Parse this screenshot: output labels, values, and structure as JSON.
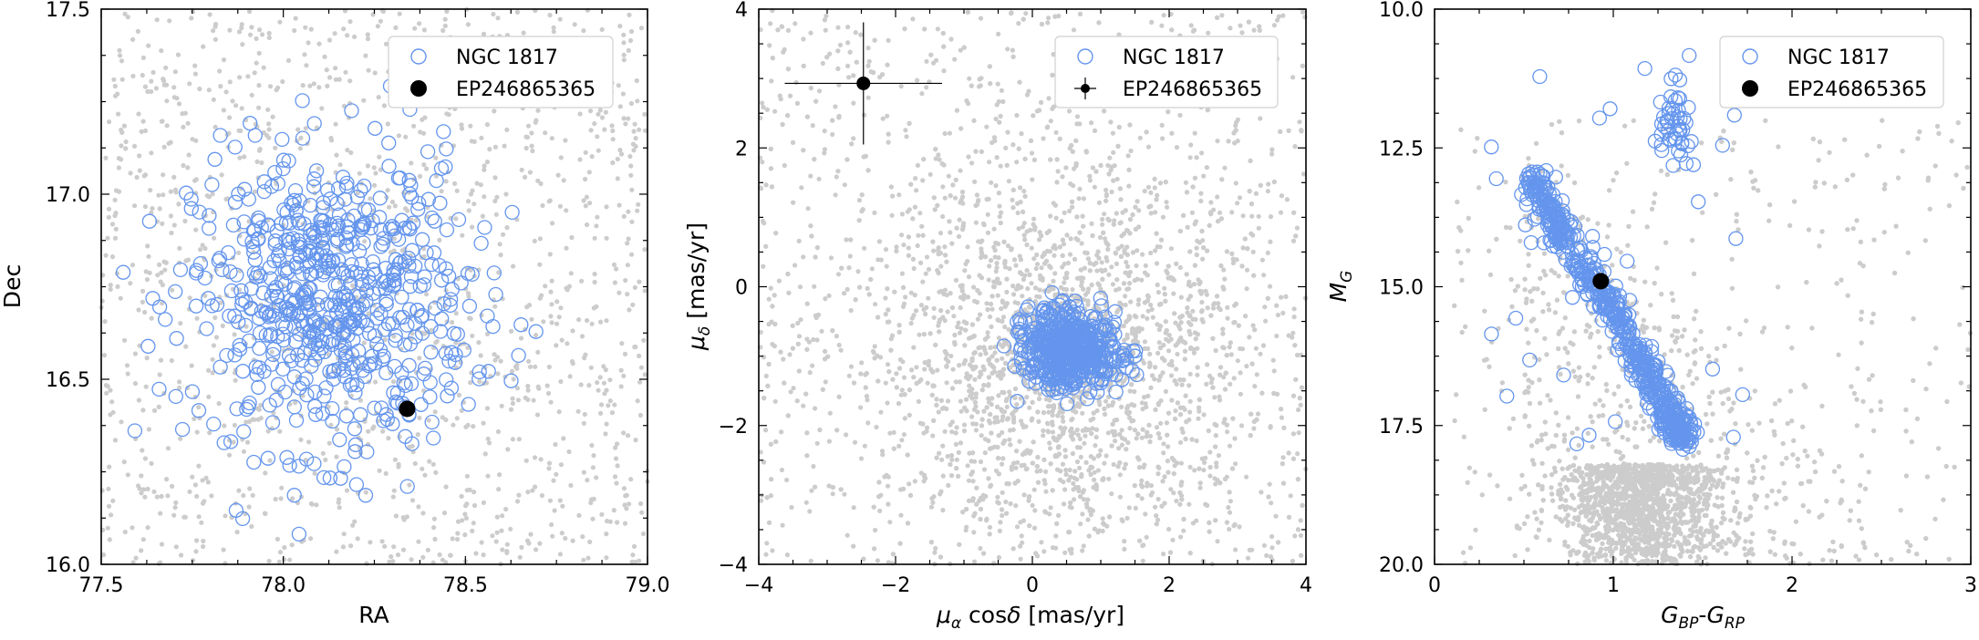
{
  "colors": {
    "field": "#cccccc",
    "cluster": "#6495ed",
    "target": "#000000",
    "frame": "#000000"
  },
  "chart_data": [
    {
      "type": "scatter",
      "id": "sky",
      "xlabel": "RA",
      "ylabel": "Dec",
      "xlim": [
        77.5,
        79.0
      ],
      "ylim": [
        16.0,
        17.5
      ],
      "xticks": [
        77.5,
        78.0,
        78.5,
        79.0
      ],
      "xtick_labels": [
        "77.5",
        "78.0",
        "78.5",
        "79.0"
      ],
      "yticks": [
        16.0,
        16.5,
        17.0,
        17.5
      ],
      "ytick_labels": [
        "16.0",
        "16.5",
        "17.0",
        "17.5"
      ],
      "legend": {
        "position": "top-right",
        "entries": [
          "NGC 1817",
          "EP246865365"
        ]
      },
      "series": [
        {
          "name": "NGC 1817",
          "marker": "open-circle",
          "members": 650,
          "center": [
            78.13,
            16.71
          ],
          "spread": [
            0.19,
            0.2
          ]
        },
        {
          "name": "EP246865365",
          "marker": "filled-circle",
          "x": [
            78.34
          ],
          "y": [
            16.42
          ]
        }
      ],
      "background_field": {
        "count": 1400,
        "distribution": "uniform"
      }
    },
    {
      "type": "scatter",
      "id": "proper-motion",
      "xlabel": "μα cosδ [mas/yr]",
      "ylabel": "μδ [mas/yr]",
      "xlim": [
        -4,
        4
      ],
      "ylim": [
        -4,
        4
      ],
      "xticks": [
        -4,
        -2,
        0,
        2,
        4
      ],
      "xtick_labels": [
        "−4",
        "−2",
        "0",
        "2",
        "4"
      ],
      "yticks": [
        -4,
        -2,
        0,
        2,
        4
      ],
      "ytick_labels": [
        "−4",
        "−2",
        "0",
        "2",
        "4"
      ],
      "legend": {
        "position": "top-right",
        "entries": [
          "NGC 1817",
          "EP246865365"
        ]
      },
      "series": [
        {
          "name": "NGC 1817",
          "marker": "open-circle",
          "members": 560,
          "center": [
            0.55,
            -0.9
          ],
          "spread": [
            0.34,
            0.27
          ]
        },
        {
          "name": "EP246865365",
          "marker": "filled-circle-errorbar",
          "x": [
            -2.47
          ],
          "y": [
            2.93
          ],
          "xerr": [
            1.15
          ],
          "yerr": [
            0.88
          ]
        }
      ],
      "background_field": {
        "count": 3800,
        "center": [
          0.5,
          -1.0
        ],
        "spread": [
          1.3,
          1.3
        ]
      }
    },
    {
      "type": "scatter",
      "id": "cmd",
      "xlabel": "GBP-GRP",
      "ylabel": "MG",
      "xlim": [
        0,
        3
      ],
      "ylim": [
        20.0,
        10.0
      ],
      "y_inverted": true,
      "xticks": [
        0,
        1,
        2,
        3
      ],
      "xtick_labels": [
        "0",
        "1",
        "2",
        "3"
      ],
      "yticks": [
        10.0,
        12.5,
        15.0,
        17.5,
        20.0
      ],
      "ytick_labels": [
        "10.0",
        "12.5",
        "15.0",
        "17.5",
        "20.0"
      ],
      "legend": {
        "position": "top-right",
        "entries": [
          "NGC 1817",
          "EP246865365"
        ]
      },
      "series": [
        {
          "name": "NGC 1817",
          "marker": "open-circle",
          "main_sequence": [
            [
              0.55,
              13.0
            ],
            [
              0.7,
              14.0
            ],
            [
              0.95,
              15.2
            ],
            [
              1.15,
              16.3
            ],
            [
              1.3,
              17.2
            ],
            [
              1.4,
              17.8
            ]
          ],
          "red_clump": [
            1.35,
            12.0
          ],
          "members": 640
        },
        {
          "name": "EP246865365",
          "marker": "filled-circle",
          "x": [
            0.93
          ],
          "y": [
            14.9
          ]
        }
      ],
      "background_field": {
        "count": 4200,
        "concentration": [
          1.15,
          19.5
        ]
      }
    }
  ]
}
